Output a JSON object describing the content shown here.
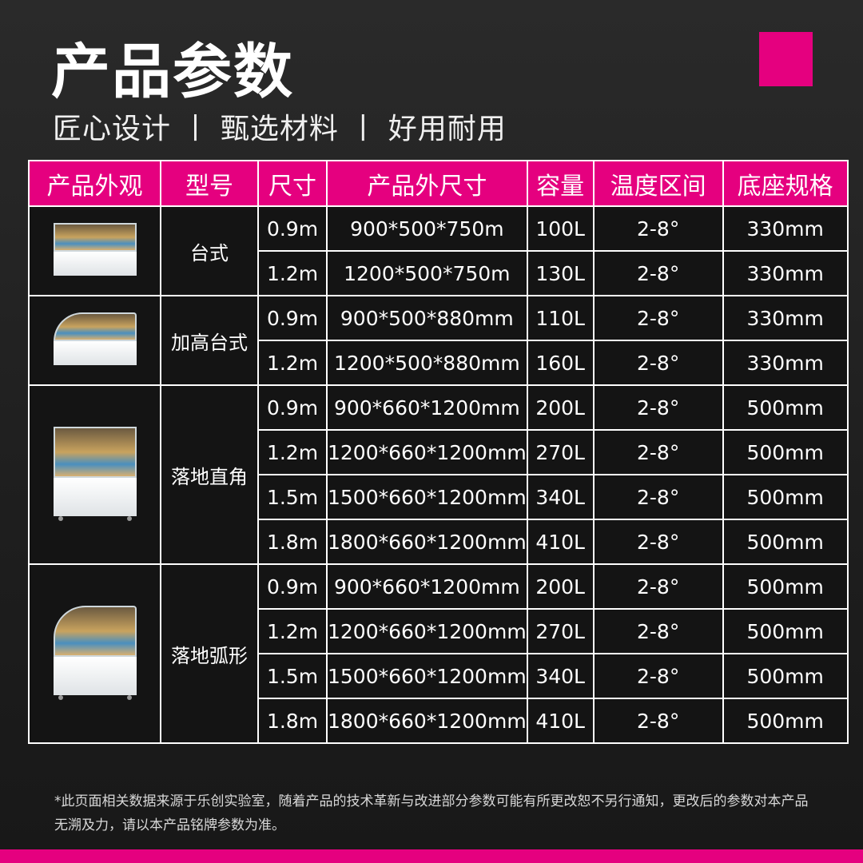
{
  "header": {
    "title": "产品参数",
    "subtitle": "匠心设计 丨 甄选材料 丨 好用耐用",
    "accent_color": "#e5007f"
  },
  "table": {
    "columns": [
      "产品外观",
      "型号",
      "尺寸",
      "产品外尺寸",
      "容量",
      "温度区间",
      "底座规格"
    ],
    "groups": [
      {
        "model": "台式",
        "image": "countertop-square-display-case",
        "rows": [
          {
            "size": "0.9m",
            "dims": "900*500*750m",
            "capacity": "100L",
            "temp": "2-8°",
            "base": "330mm"
          },
          {
            "size": "1.2m",
            "dims": "1200*500*750m",
            "capacity": "130L",
            "temp": "2-8°",
            "base": "330mm"
          }
        ]
      },
      {
        "model": "加高台式",
        "image": "countertop-curved-display-case",
        "rows": [
          {
            "size": "0.9m",
            "dims": "900*500*880mm",
            "capacity": "110L",
            "temp": "2-8°",
            "base": "330mm"
          },
          {
            "size": "1.2m",
            "dims": "1200*500*880mm",
            "capacity": "160L",
            "temp": "2-8°",
            "base": "330mm"
          }
        ]
      },
      {
        "model": "落地直角",
        "image": "floor-square-display-case",
        "rows": [
          {
            "size": "0.9m",
            "dims": "900*660*1200mm",
            "capacity": "200L",
            "temp": "2-8°",
            "base": "500mm"
          },
          {
            "size": "1.2m",
            "dims": "1200*660*1200mm",
            "capacity": "270L",
            "temp": "2-8°",
            "base": "500mm"
          },
          {
            "size": "1.5m",
            "dims": "1500*660*1200mm",
            "capacity": "340L",
            "temp": "2-8°",
            "base": "500mm"
          },
          {
            "size": "1.8m",
            "dims": "1800*660*1200mm",
            "capacity": "410L",
            "temp": "2-8°",
            "base": "500mm"
          }
        ]
      },
      {
        "model": "落地弧形",
        "image": "floor-curved-display-case",
        "rows": [
          {
            "size": "0.9m",
            "dims": "900*660*1200mm",
            "capacity": "200L",
            "temp": "2-8°",
            "base": "500mm"
          },
          {
            "size": "1.2m",
            "dims": "1200*660*1200mm",
            "capacity": "270L",
            "temp": "2-8°",
            "base": "500mm"
          },
          {
            "size": "1.5m",
            "dims": "1500*660*1200mm",
            "capacity": "340L",
            "temp": "2-8°",
            "base": "500mm"
          },
          {
            "size": "1.8m",
            "dims": "1800*660*1200mm",
            "capacity": "410L",
            "temp": "2-8°",
            "base": "500mm"
          }
        ]
      }
    ]
  },
  "footnote": "*此页面相关数据来源于乐创实验室，随着产品的技术革新与改进部分参数可能有所更改恕不另行通知，更改后的参数对本产品无溯及力，请以本产品铭牌参数为准。"
}
